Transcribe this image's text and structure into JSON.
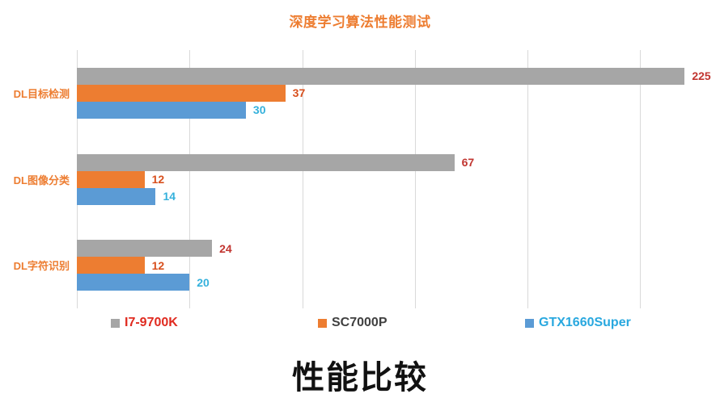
{
  "page": {
    "top_title": "深度学习算法性能测试",
    "bottom_title": "性能比较"
  },
  "colors": {
    "top_title": "#ED7D31",
    "category_label": "#ED7D31",
    "gridline": "#D9D9D9",
    "bottom_title": "#111111"
  },
  "chart_data": {
    "type": "bar",
    "orientation": "horizontal",
    "title": "深度学习算法性能测试",
    "footer_title": "性能比较",
    "categories": [
      "DL目标检测",
      "DL图像分类",
      "DL字符识别"
    ],
    "series": [
      {
        "name": "I7-9700K",
        "color": "#A6A6A6",
        "label_color": "#C13530",
        "values": [
          225,
          67,
          24
        ]
      },
      {
        "name": "SC7000P",
        "color": "#ED7D31",
        "label_color": "#D8501E",
        "values": [
          37,
          12,
          12
        ]
      },
      {
        "name": "GTX1660Super",
        "color": "#5B9BD5",
        "label_color": "#35B1DC",
        "values": [
          30,
          14,
          20
        ]
      }
    ],
    "xlabel": "",
    "ylabel": "",
    "axis": {
      "min": 0,
      "max_visible": 111,
      "gridlines_at": [
        0,
        20,
        40,
        60,
        80,
        100
      ],
      "tick_labels_shown": false,
      "overflow_clip_percent": 97.2
    },
    "grid": "vertical-only",
    "legend_position": "bottom",
    "data_labels": "outside-end"
  },
  "legend": {
    "items": [
      {
        "label": "I7-9700K",
        "swatch_color": "#A6A6A6",
        "text_color": "#E02B20"
      },
      {
        "label": "SC7000P",
        "swatch_color": "#ED7D31",
        "text_color": "#404040"
      },
      {
        "label": "GTX1660Super",
        "swatch_color": "#5B9BD5",
        "text_color": "#29A8DF"
      }
    ]
  }
}
